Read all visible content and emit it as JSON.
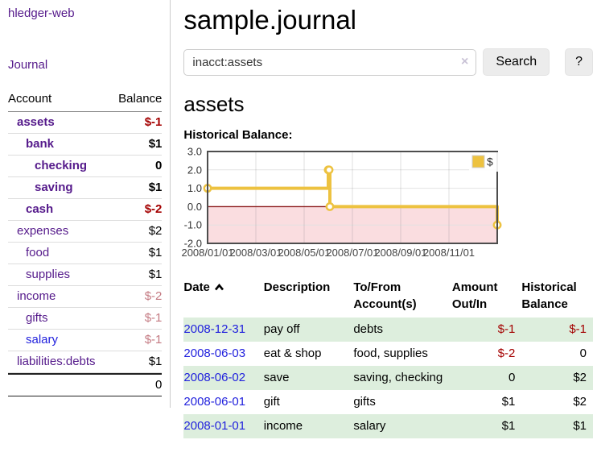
{
  "app": {
    "title": "hledger-web",
    "nav_journal": "Journal"
  },
  "sidebar": {
    "header": {
      "account": "Account",
      "balance": "Balance"
    },
    "accounts": [
      {
        "name": "assets",
        "depth": 1,
        "bold": true,
        "balance": "$-1",
        "neg": "strong"
      },
      {
        "name": "bank",
        "depth": 2,
        "bold": true,
        "balance": "$1",
        "neg": "none"
      },
      {
        "name": "checking",
        "depth": 3,
        "bold": true,
        "balance": "0",
        "neg": "none"
      },
      {
        "name": "saving",
        "depth": 3,
        "bold": true,
        "balance": "$1",
        "neg": "none"
      },
      {
        "name": "cash",
        "depth": 2,
        "bold": true,
        "balance": "$-2",
        "neg": "strong"
      },
      {
        "name": "expenses",
        "depth": 1,
        "bold": false,
        "balance": "$2",
        "neg": "none"
      },
      {
        "name": "food",
        "depth": 2,
        "bold": false,
        "balance": "$1",
        "neg": "none"
      },
      {
        "name": "supplies",
        "depth": 2,
        "bold": false,
        "balance": "$1",
        "neg": "none"
      },
      {
        "name": "income",
        "depth": 1,
        "bold": false,
        "balance": "$-2",
        "neg": "soft"
      },
      {
        "name": "gifts",
        "depth": 2,
        "bold": false,
        "balance": "$-1",
        "neg": "soft"
      },
      {
        "name": "salary",
        "depth": 2,
        "bold": false,
        "balance": "$-1",
        "neg": "soft",
        "link_color": "blue"
      },
      {
        "name": "liabilities:debts",
        "depth": 1,
        "bold": false,
        "balance": "$1",
        "neg": "none"
      }
    ],
    "total": "0"
  },
  "main": {
    "title": "sample.journal",
    "search": {
      "value": "inacct:assets",
      "clear_icon": "×",
      "button": "Search",
      "help": "?"
    },
    "account_heading": "assets",
    "section_label": "Historical Balance:"
  },
  "chart_data": {
    "type": "line",
    "step": true,
    "title": "Historical Balance of assets",
    "series": [
      {
        "name": "$",
        "color": "#EDC240",
        "points": [
          [
            "2008-01-01",
            1
          ],
          [
            "2008-06-01",
            2
          ],
          [
            "2008-06-02",
            2
          ],
          [
            "2008-06-03",
            0
          ],
          [
            "2008-12-31",
            -1
          ]
        ]
      }
    ],
    "ylim": [
      -2.0,
      3.0
    ],
    "yticks": [
      3.0,
      2.0,
      1.0,
      0.0,
      -1.0,
      -2.0
    ],
    "xticks": [
      {
        "label": "2008/01/01",
        "month": 0
      },
      {
        "label": "2008/03/01",
        "month": 2
      },
      {
        "label": "2008/05/01",
        "month": 4
      },
      {
        "label": "2008/07/01",
        "month": 6
      },
      {
        "label": "2008/09/01",
        "month": 8
      },
      {
        "label": "2008/11/01",
        "month": 10
      }
    ],
    "xlim_months": [
      0,
      12
    ],
    "grid": true,
    "legend_position": "top-right",
    "legend": [
      "$"
    ],
    "zero_line_color": "#8b1a1a",
    "negative_region_color": "#fadde0",
    "border_color": "#4d4d4d",
    "gridline_color": "#e2e2e2"
  },
  "register": {
    "columns": [
      "Date",
      "Description",
      "To/From Account(s)",
      "Amount Out/In",
      "Historical Balance"
    ],
    "sort": {
      "column": "Date",
      "direction": "asc"
    },
    "rows": [
      {
        "date": "2008-12-31",
        "description": "pay off",
        "accounts": "debts",
        "amount": "$-1",
        "balance": "$-1"
      },
      {
        "date": "2008-06-03",
        "description": "eat & shop",
        "accounts": "food, supplies",
        "amount": "$-2",
        "balance": "0"
      },
      {
        "date": "2008-06-02",
        "description": "save",
        "accounts": "saving, checking",
        "amount": "0",
        "balance": "$2"
      },
      {
        "date": "2008-06-01",
        "description": "gift",
        "accounts": "gifts",
        "amount": "$1",
        "balance": "$2"
      },
      {
        "date": "2008-01-01",
        "description": "income",
        "accounts": "salary",
        "amount": "$1",
        "balance": "$1"
      }
    ]
  }
}
